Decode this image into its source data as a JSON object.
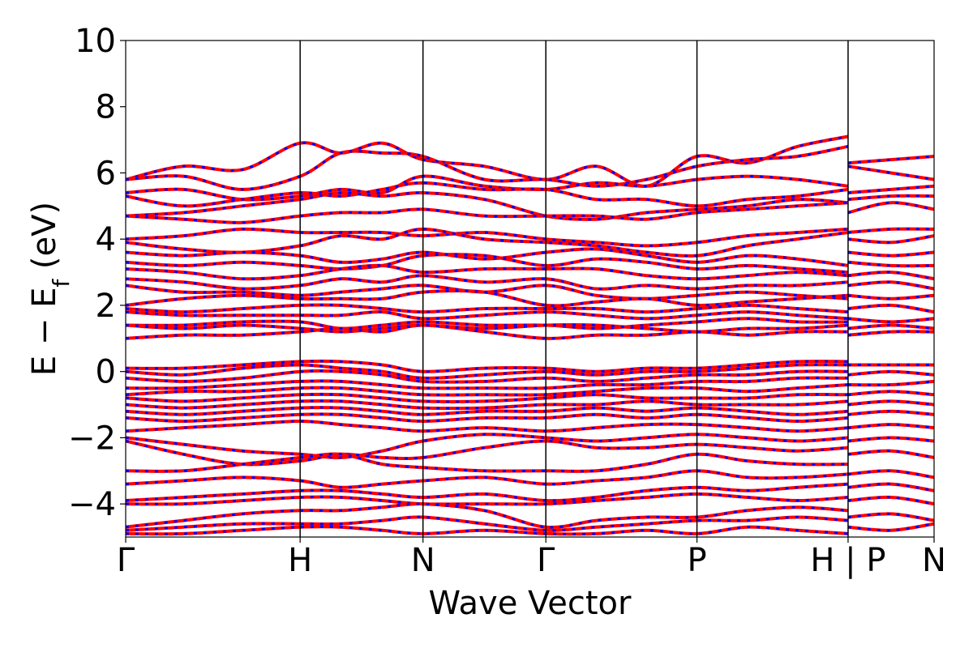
{
  "chart_data": {
    "type": "line",
    "title": "",
    "xlabel": "Wave Vector",
    "ylabel": {
      "prefix": "E − E",
      "subscript": "f",
      "suffix": " (eV)"
    },
    "ylim": [
      -5,
      10
    ],
    "yticks": [
      -4,
      -2,
      0,
      2,
      4,
      6,
      8,
      10
    ],
    "ytick_labels": [
      "−4",
      "−2",
      "0",
      "2",
      "4",
      "6",
      "8",
      "10"
    ],
    "xticks": [
      0,
      1.42,
      2.42,
      3.42,
      4.65,
      5.88,
      6.58
    ],
    "xtick_labels": [
      "Γ",
      "H",
      "N",
      "Γ",
      "P",
      "H | P",
      "N"
    ],
    "xlim": [
      0,
      6.58
    ],
    "segments": [
      [
        0,
        5.88
      ],
      [
        5.88,
        6.58
      ]
    ],
    "grid": false,
    "legend": "none",
    "series_style": {
      "solid_color": "#ff0000",
      "dashed_color": "#0000ff"
    },
    "bands": [
      {
        "y": [
          5.8,
          6.2,
          6.1,
          6.9,
          6.6,
          6.9,
          6.4,
          6.2,
          5.8,
          6.2,
          5.6,
          6.5,
          6.3,
          6.8,
          7.1,
          6.6
        ]
      },
      {
        "y": [
          5.8,
          5.9,
          5.5,
          5.9,
          6.6,
          6.6,
          6.5,
          5.8,
          5.8,
          5.6,
          5.8,
          6.2,
          6.4,
          6.5,
          6.8,
          6.6
        ]
      },
      {
        "y": [
          5.4,
          5.5,
          5.2,
          5.3,
          5.5,
          5.4,
          5.9,
          5.6,
          5.5,
          5.7,
          5.6,
          5.8,
          5.9,
          5.8,
          5.6,
          5.4
        ]
      },
      {
        "y": [
          5.3,
          5.0,
          5.2,
          5.4,
          5.3,
          5.5,
          5.7,
          5.5,
          5.5,
          5.2,
          5.2,
          5.0,
          5.2,
          5.3,
          5.5,
          5.3
        ]
      },
      {
        "y": [
          4.7,
          4.8,
          5.0,
          5.2,
          5.4,
          5.3,
          5.4,
          5.2,
          4.7,
          4.6,
          4.8,
          4.9,
          5.0,
          5.2,
          5.1,
          5.0
        ]
      },
      {
        "y": [
          4.7,
          4.6,
          4.5,
          4.7,
          4.8,
          4.8,
          4.9,
          4.7,
          4.7,
          4.7,
          4.6,
          4.8,
          4.9,
          5.0,
          5.1,
          4.9
        ]
      },
      {
        "y": [
          4.0,
          4.1,
          4.3,
          4.2,
          4.2,
          4.2,
          4.1,
          4.2,
          4.0,
          3.9,
          3.8,
          3.9,
          4.1,
          4.2,
          4.3,
          4.2
        ]
      },
      {
        "y": [
          3.9,
          3.7,
          3.6,
          3.8,
          4.1,
          4.0,
          4.3,
          4.0,
          3.9,
          3.8,
          3.6,
          3.5,
          3.8,
          4.0,
          4.2,
          4.1
        ]
      },
      {
        "y": [
          3.6,
          3.5,
          3.6,
          3.5,
          3.3,
          3.4,
          3.6,
          3.4,
          3.6,
          3.7,
          3.5,
          3.3,
          3.5,
          3.4,
          3.2,
          3.3
        ]
      },
      {
        "y": [
          3.3,
          3.2,
          3.3,
          3.2,
          3.1,
          3.2,
          3.5,
          3.5,
          3.2,
          3.4,
          3.3,
          3.1,
          3.2,
          3.1,
          3.0,
          2.9
        ]
      },
      {
        "y": [
          3.1,
          3.0,
          2.8,
          2.9,
          3.1,
          3.2,
          3.0,
          3.1,
          3.1,
          3.1,
          2.9,
          2.8,
          2.9,
          3.0,
          2.9,
          2.8
        ]
      },
      {
        "y": [
          2.8,
          2.7,
          2.5,
          2.6,
          2.8,
          2.7,
          2.9,
          2.7,
          2.8,
          2.5,
          2.6,
          2.5,
          2.6,
          2.6,
          2.7,
          2.5
        ]
      },
      {
        "y": [
          2.6,
          2.4,
          2.4,
          2.3,
          2.4,
          2.5,
          2.6,
          2.4,
          2.6,
          2.3,
          2.2,
          2.3,
          2.4,
          2.3,
          2.2,
          2.3
        ]
      },
      {
        "y": [
          2.0,
          2.2,
          2.3,
          2.2,
          2.2,
          2.2,
          2.4,
          2.4,
          2.0,
          2.1,
          2.2,
          2.0,
          2.1,
          2.2,
          2.3,
          2.2
        ]
      },
      {
        "y": [
          1.9,
          1.8,
          1.9,
          2.0,
          2.0,
          1.9,
          1.8,
          1.9,
          1.9,
          1.9,
          1.8,
          1.9,
          2.0,
          1.9,
          1.8,
          1.9
        ]
      },
      {
        "y": [
          1.8,
          1.7,
          1.7,
          1.7,
          1.7,
          1.8,
          1.6,
          1.7,
          1.8,
          1.7,
          1.6,
          1.7,
          1.8,
          1.7,
          1.6,
          1.7
        ]
      },
      {
        "y": [
          1.4,
          1.4,
          1.5,
          1.5,
          1.3,
          1.4,
          1.5,
          1.4,
          1.4,
          1.3,
          1.4,
          1.5,
          1.6,
          1.5,
          1.5,
          1.4
        ]
      },
      {
        "y": [
          1.4,
          1.3,
          1.4,
          1.3,
          1.2,
          1.3,
          1.4,
          1.3,
          1.4,
          1.4,
          1.3,
          1.2,
          1.3,
          1.3,
          1.4,
          1.3
        ]
      },
      {
        "y": [
          1.0,
          1.1,
          1.1,
          1.2,
          1.3,
          1.2,
          1.4,
          1.2,
          1.0,
          1.1,
          1.1,
          1.2,
          1.1,
          1.2,
          1.2,
          1.2
        ]
      },
      {
        "y": [
          0.1,
          0.1,
          0.2,
          0.3,
          0.3,
          0.2,
          0.0,
          0.1,
          0.1,
          0.0,
          0.1,
          0.1,
          0.2,
          0.3,
          0.3,
          0.2
        ]
      },
      {
        "y": [
          0.0,
          -0.1,
          0.1,
          0.2,
          0.1,
          0.0,
          -0.2,
          -0.1,
          0.0,
          -0.1,
          0.0,
          0.0,
          0.1,
          0.2,
          0.2,
          0.1
        ]
      },
      {
        "y": [
          -0.2,
          -0.3,
          -0.2,
          0.0,
          0.0,
          -0.1,
          -0.3,
          -0.3,
          -0.2,
          -0.3,
          -0.2,
          -0.1,
          -0.1,
          0.0,
          0.0,
          -0.1
        ]
      },
      {
        "y": [
          -0.5,
          -0.5,
          -0.4,
          -0.3,
          -0.3,
          -0.4,
          -0.5,
          -0.5,
          -0.5,
          -0.4,
          -0.4,
          -0.3,
          -0.3,
          -0.2,
          -0.2,
          -0.3
        ]
      },
      {
        "y": [
          -0.7,
          -0.6,
          -0.6,
          -0.5,
          -0.5,
          -0.6,
          -0.7,
          -0.7,
          -0.7,
          -0.6,
          -0.5,
          -0.5,
          -0.6,
          -0.5,
          -0.4,
          -0.5
        ]
      },
      {
        "y": [
          -0.8,
          -0.9,
          -0.8,
          -0.7,
          -0.7,
          -0.8,
          -0.9,
          -0.9,
          -0.8,
          -0.7,
          -0.8,
          -0.8,
          -0.8,
          -0.7,
          -0.7,
          -0.8
        ]
      },
      {
        "y": [
          -1.0,
          -1.1,
          -1.0,
          -0.9,
          -0.9,
          -1.0,
          -1.1,
          -1.1,
          -1.0,
          -1.0,
          -0.9,
          -1.0,
          -1.0,
          -1.0,
          -0.9,
          -1.0
        ]
      },
      {
        "y": [
          -1.2,
          -1.3,
          -1.2,
          -1.1,
          -1.1,
          -1.2,
          -1.3,
          -1.2,
          -1.2,
          -1.1,
          -1.2,
          -1.1,
          -1.2,
          -1.3,
          -1.2,
          -1.2
        ]
      },
      {
        "y": [
          -1.4,
          -1.5,
          -1.4,
          -1.3,
          -1.3,
          -1.4,
          -1.5,
          -1.4,
          -1.4,
          -1.3,
          -1.4,
          -1.3,
          -1.4,
          -1.5,
          -1.4,
          -1.4
        ]
      },
      {
        "y": [
          -1.8,
          -1.7,
          -1.6,
          -1.5,
          -1.6,
          -1.7,
          -1.8,
          -1.7,
          -1.8,
          -1.7,
          -1.6,
          -1.6,
          -1.7,
          -1.8,
          -1.7,
          -1.7
        ]
      },
      {
        "y": [
          -2.0,
          -2.2,
          -2.4,
          -2.5,
          -2.6,
          -2.4,
          -2.1,
          -1.9,
          -2.0,
          -2.1,
          -2.0,
          -1.9,
          -2.0,
          -2.1,
          -2.0,
          -2.0
        ]
      },
      {
        "y": [
          -2.1,
          -2.5,
          -2.8,
          -2.7,
          -2.5,
          -2.6,
          -2.6,
          -2.3,
          -2.1,
          -2.3,
          -2.3,
          -2.2,
          -2.3,
          -2.4,
          -2.3,
          -2.3
        ]
      },
      {
        "y": [
          -3.0,
          -3.0,
          -2.8,
          -2.6,
          -2.5,
          -2.8,
          -2.9,
          -3.0,
          -3.0,
          -3.0,
          -2.8,
          -2.5,
          -2.7,
          -2.8,
          -2.8,
          -2.7
        ]
      },
      {
        "y": [
          -3.4,
          -3.3,
          -3.2,
          -3.3,
          -3.5,
          -3.4,
          -3.3,
          -3.2,
          -3.4,
          -3.3,
          -3.2,
          -3.0,
          -3.2,
          -3.2,
          -3.1,
          -3.1
        ]
      },
      {
        "y": [
          -3.9,
          -3.8,
          -3.7,
          -3.6,
          -3.6,
          -3.7,
          -3.8,
          -3.7,
          -3.9,
          -3.8,
          -3.6,
          -3.5,
          -3.6,
          -3.5,
          -3.4,
          -3.5
        ]
      },
      {
        "y": [
          -4.0,
          -4.0,
          -3.9,
          -3.8,
          -3.8,
          -3.9,
          -4.0,
          -4.0,
          -4.0,
          -3.9,
          -3.8,
          -3.7,
          -3.8,
          -3.9,
          -3.8,
          -3.8
        ]
      },
      {
        "y": [
          -4.7,
          -4.5,
          -4.3,
          -4.2,
          -4.2,
          -4.1,
          -4.0,
          -4.2,
          -4.7,
          -4.5,
          -4.4,
          -4.4,
          -4.2,
          -4.1,
          -4.2,
          -4.0
        ]
      },
      {
        "y": [
          -4.8,
          -4.7,
          -4.6,
          -4.6,
          -4.6,
          -4.5,
          -4.4,
          -4.6,
          -4.8,
          -4.7,
          -4.6,
          -4.5,
          -4.5,
          -4.4,
          -4.5,
          -4.6
        ]
      },
      {
        "y": [
          -4.9,
          -4.9,
          -4.8,
          -4.7,
          -4.7,
          -4.8,
          -4.9,
          -4.8,
          -4.9,
          -4.9,
          -4.8,
          -4.9,
          -4.7,
          -4.8,
          -4.9,
          -4.8
        ]
      }
    ],
    "bands_x": [
      0,
      0.47,
      0.95,
      1.42,
      1.75,
      2.09,
      2.42,
      2.92,
      3.42,
      3.83,
      4.24,
      4.65,
      5.06,
      5.47,
      5.88,
      5.88
    ],
    "bands_segment2": [
      {
        "y": [
          6.3,
          6.4,
          6.5
        ]
      },
      {
        "y": [
          6.2,
          6.0,
          5.8
        ]
      },
      {
        "y": [
          5.4,
          5.5,
          5.6
        ]
      },
      {
        "y": [
          5.2,
          5.3,
          5.3
        ]
      },
      {
        "y": [
          4.8,
          5.1,
          4.9
        ]
      },
      {
        "y": [
          4.2,
          4.3,
          4.3
        ]
      },
      {
        "y": [
          4.0,
          3.9,
          4.1
        ]
      },
      {
        "y": [
          3.6,
          3.5,
          3.6
        ]
      },
      {
        "y": [
          3.3,
          3.2,
          3.2
        ]
      },
      {
        "y": [
          2.9,
          3.0,
          2.8
        ]
      },
      {
        "y": [
          2.6,
          2.7,
          2.5
        ]
      },
      {
        "y": [
          2.3,
          2.2,
          2.3
        ]
      },
      {
        "y": [
          1.9,
          2.0,
          1.8
        ]
      },
      {
        "y": [
          1.6,
          1.5,
          1.6
        ]
      },
      {
        "y": [
          1.3,
          1.4,
          1.3
        ]
      },
      {
        "y": [
          1.1,
          1.2,
          1.2
        ]
      },
      {
        "y": [
          0.2,
          0.2,
          0.2
        ]
      },
      {
        "y": [
          -0.1,
          0.0,
          -0.1
        ]
      },
      {
        "y": [
          -0.4,
          -0.4,
          -0.3
        ]
      },
      {
        "y": [
          -0.7,
          -0.6,
          -0.7
        ]
      },
      {
        "y": [
          -1.0,
          -0.9,
          -1.0
        ]
      },
      {
        "y": [
          -1.3,
          -1.2,
          -1.3
        ]
      },
      {
        "y": [
          -1.7,
          -1.6,
          -1.7
        ]
      },
      {
        "y": [
          -2.1,
          -2.0,
          -2.1
        ]
      },
      {
        "y": [
          -2.5,
          -2.4,
          -2.6
        ]
      },
      {
        "y": [
          -3.1,
          -3.0,
          -3.2
        ]
      },
      {
        "y": [
          -3.5,
          -3.4,
          -3.6
        ]
      },
      {
        "y": [
          -3.9,
          -3.8,
          -4.0
        ]
      },
      {
        "y": [
          -4.4,
          -4.3,
          -4.5
        ]
      },
      {
        "y": [
          -4.7,
          -4.8,
          -4.6
        ]
      }
    ],
    "bands_segment2_x": [
      5.88,
      6.23,
      6.58
    ]
  }
}
